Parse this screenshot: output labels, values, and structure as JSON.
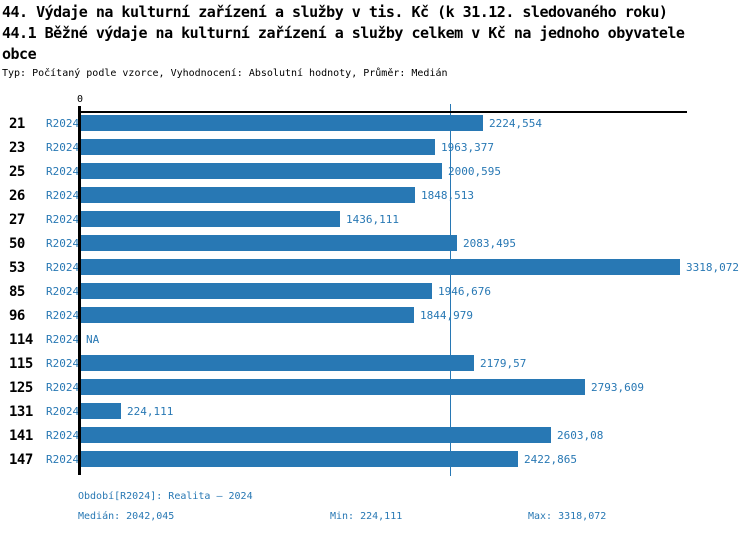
{
  "header": {
    "title_line1": "44. Výdaje na kulturní zařízení a služby v tis. Kč (k 31.12. sledovaného roku)",
    "title_line2": "44.1 Běžné výdaje na kulturní zařízení a služby celkem v Kč na jednoho obyvatele",
    "title_line3": "obce",
    "meta": "Typ: Počítaný podle vzorce, Vyhodnocení: Absolutní hodnoty, Průměr: Medián"
  },
  "chart_data": {
    "type": "bar",
    "orientation": "horizontal",
    "title": "44.1 Běžné výdaje na kulturní zařízení a služby celkem v Kč na jednoho obyvatele obce",
    "xlabel": "",
    "ylabel": "",
    "axis_zero_label": "0",
    "xlim": [
      0,
      3318.072
    ],
    "grid": false,
    "legend_position": "none",
    "series_label": "R2024",
    "bar_color": "#2878B4",
    "axis_color": "#000000",
    "median_value": 2042.045,
    "rows": [
      {
        "id": "21",
        "period": "R2024",
        "value": 2224.554,
        "display": "2224,554"
      },
      {
        "id": "23",
        "period": "R2024",
        "value": 1963.377,
        "display": "1963,377"
      },
      {
        "id": "25",
        "period": "R2024",
        "value": 2000.595,
        "display": "2000,595"
      },
      {
        "id": "26",
        "period": "R2024",
        "value": 1848.513,
        "display": "1848,513"
      },
      {
        "id": "27",
        "period": "R2024",
        "value": 1436.111,
        "display": "1436,111"
      },
      {
        "id": "50",
        "period": "R2024",
        "value": 2083.495,
        "display": "2083,495"
      },
      {
        "id": "53",
        "period": "R2024",
        "value": 3318.072,
        "display": "3318,072"
      },
      {
        "id": "85",
        "period": "R2024",
        "value": 1946.676,
        "display": "1946,676"
      },
      {
        "id": "96",
        "period": "R2024",
        "value": 1844.979,
        "display": "1844,979"
      },
      {
        "id": "114",
        "period": "R2024",
        "value": null,
        "display": "NA"
      },
      {
        "id": "115",
        "period": "R2024",
        "value": 2179.57,
        "display": "2179,57"
      },
      {
        "id": "125",
        "period": "R2024",
        "value": 2793.609,
        "display": "2793,609"
      },
      {
        "id": "131",
        "period": "R2024",
        "value": 224.111,
        "display": "224,111"
      },
      {
        "id": "141",
        "period": "R2024",
        "value": 2603.08,
        "display": "2603,08"
      },
      {
        "id": "147",
        "period": "R2024",
        "value": 2422.865,
        "display": "2422,865"
      }
    ]
  },
  "footer": {
    "period_line": "Období[R2024]: Realita – 2024",
    "median_label": "Medián: 2042,045",
    "min_label": "Min: 224,111",
    "max_label": "Max: 3318,072"
  }
}
